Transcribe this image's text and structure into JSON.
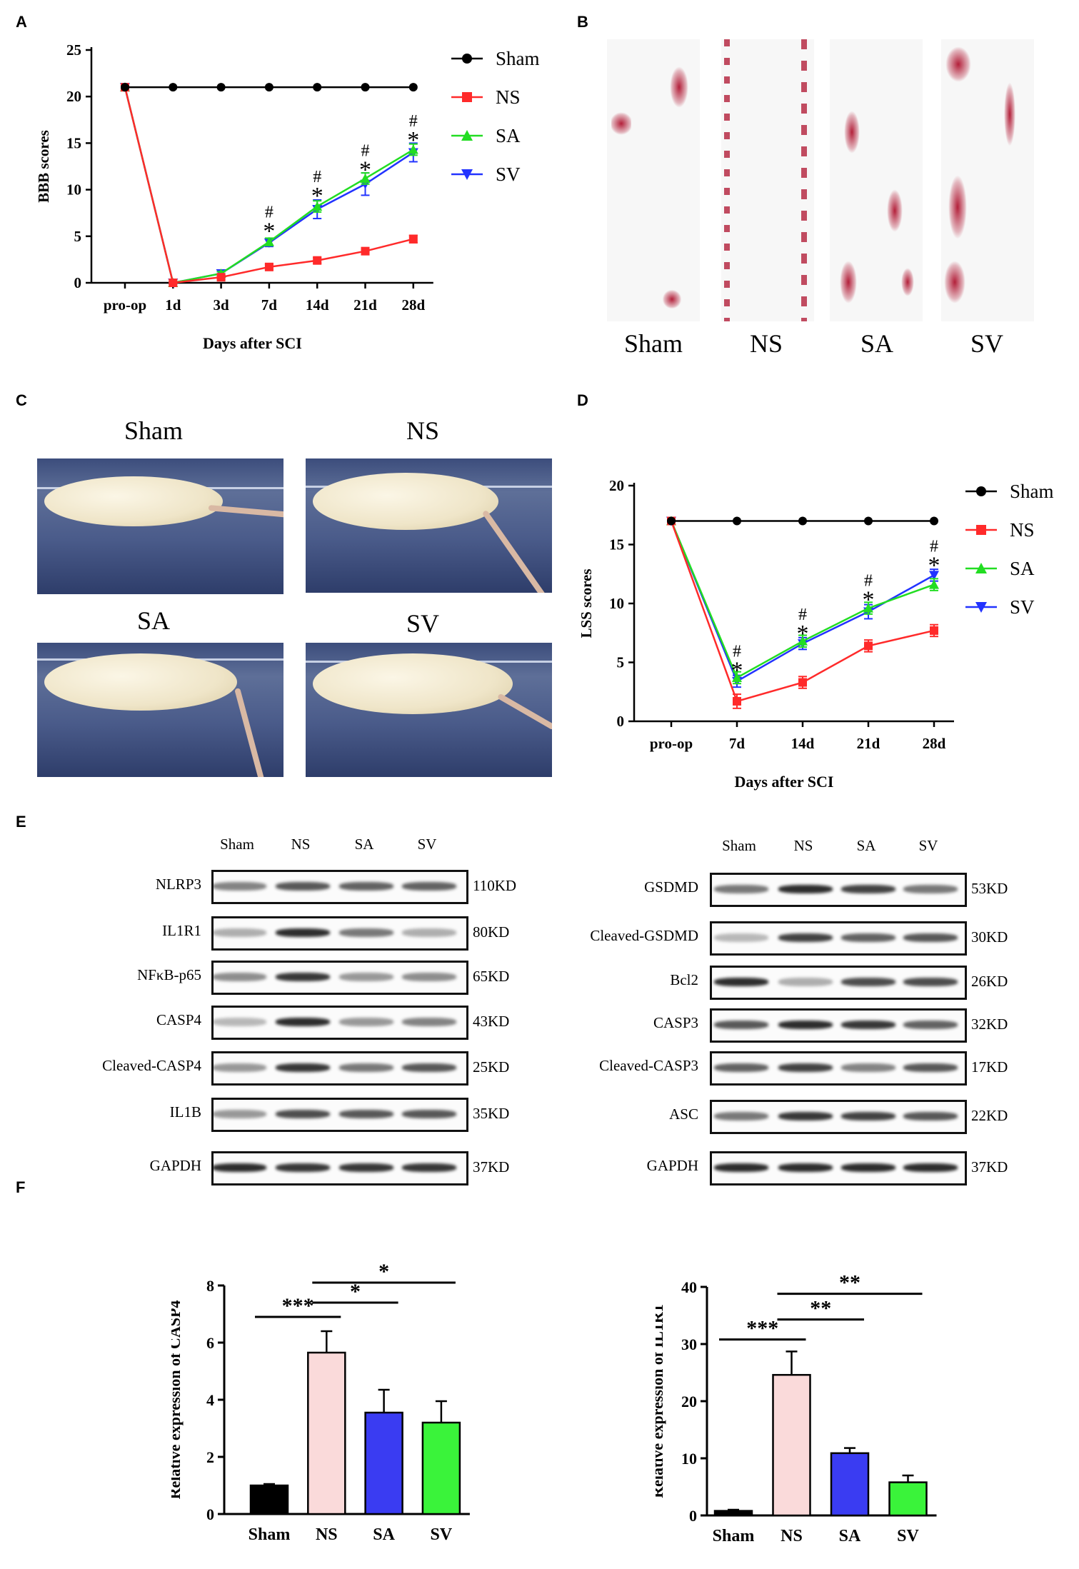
{
  "panels": {
    "A": "A",
    "B": "B",
    "C": "C",
    "D": "D",
    "E": "E",
    "F": "F"
  },
  "colors": {
    "sham": "#000000",
    "ns": "#ff2a2a",
    "sa": "#22dd22",
    "sv": "#2233ff",
    "bar_sham": "#000000",
    "bar_ns": "#fadada",
    "bar_sa": "#3a3cf2",
    "bar_sv": "#3af33a"
  },
  "panelB": {
    "labels": [
      "Sham",
      "NS",
      "SA",
      "SV"
    ]
  },
  "panelC": {
    "labels": [
      "Sham",
      "NS",
      "SA",
      "SV"
    ]
  },
  "panelE": {
    "left": {
      "lanes": [
        "Sham",
        "NS",
        "SA",
        "SV"
      ],
      "rows": [
        {
          "name": "NLRP3",
          "kd": "110KD",
          "intensity": [
            0.55,
            0.75,
            0.7,
            0.7
          ]
        },
        {
          "name": "IL1R1",
          "kd": "80KD",
          "intensity": [
            0.35,
            0.95,
            0.6,
            0.35
          ]
        },
        {
          "name": "NFκB-p65",
          "kd": "65KD",
          "intensity": [
            0.5,
            0.9,
            0.45,
            0.5
          ]
        },
        {
          "name": "CASP4",
          "kd": "43KD",
          "intensity": [
            0.3,
            0.95,
            0.45,
            0.55
          ]
        },
        {
          "name": "Cleaved-CASP4",
          "kd": "25KD",
          "intensity": [
            0.45,
            0.9,
            0.6,
            0.75
          ]
        },
        {
          "name": "IL1B",
          "kd": "35KD",
          "intensity": [
            0.45,
            0.8,
            0.75,
            0.75
          ]
        },
        {
          "name": "GAPDH",
          "kd": "37KD",
          "intensity": [
            0.95,
            0.9,
            0.9,
            0.9
          ]
        }
      ]
    },
    "right": {
      "lanes": [
        "Sham",
        "NS",
        "SA",
        "SV"
      ],
      "rows": [
        {
          "name": "GSDMD",
          "kd": "53KD",
          "intensity": [
            0.6,
            0.95,
            0.85,
            0.6
          ]
        },
        {
          "name": "Cleaved-GSDMD",
          "kd": "30KD",
          "intensity": [
            0.3,
            0.85,
            0.7,
            0.75
          ]
        },
        {
          "name": "Bcl2",
          "kd": "26KD",
          "intensity": [
            0.95,
            0.35,
            0.8,
            0.8
          ]
        },
        {
          "name": "CASP3",
          "kd": "32KD",
          "intensity": [
            0.75,
            0.95,
            0.9,
            0.7
          ]
        },
        {
          "name": "Cleaved-CASP3",
          "kd": "17KD",
          "intensity": [
            0.7,
            0.85,
            0.55,
            0.75
          ]
        },
        {
          "name": "ASC",
          "kd": "22KD",
          "intensity": [
            0.6,
            0.9,
            0.85,
            0.75
          ]
        },
        {
          "name": "GAPDH",
          "kd": "37KD",
          "intensity": [
            0.95,
            0.95,
            0.95,
            0.95
          ]
        }
      ]
    }
  },
  "chart_data": [
    {
      "id": "A",
      "type": "line",
      "xlabel": "Days after SCI",
      "ylabel": "BBB scores",
      "categories": [
        "pro-op",
        "1d",
        "3d",
        "7d",
        "14d",
        "21d",
        "28d"
      ],
      "yticks": [
        "0",
        "5",
        "10",
        "15",
        "20",
        "25"
      ],
      "ylim": [
        0,
        25
      ],
      "series": [
        {
          "name": "Sham",
          "marker": "circle",
          "values": [
            21,
            21,
            21,
            21,
            21,
            21,
            21
          ],
          "err": [
            0,
            0,
            0,
            0,
            0,
            0,
            0
          ]
        },
        {
          "name": "NS",
          "marker": "square",
          "values": [
            21,
            0,
            0.6,
            1.7,
            2.4,
            3.4,
            4.7
          ],
          "err": [
            0,
            0.1,
            0.2,
            0.3,
            0.3,
            0.3,
            0.4
          ]
        },
        {
          "name": "SA",
          "marker": "triangle-up",
          "values": [
            21,
            0,
            1.0,
            4.4,
            8.2,
            11.2,
            14.3
          ],
          "err": [
            0,
            0.1,
            0.2,
            0.4,
            0.6,
            0.6,
            0.6
          ]
        },
        {
          "name": "SV",
          "marker": "triangle-down",
          "values": [
            21,
            0,
            1.0,
            4.3,
            7.9,
            10.6,
            14.0
          ],
          "err": [
            0,
            0.1,
            0.2,
            0.4,
            1.0,
            1.2,
            1.0
          ]
        }
      ],
      "annotations": [
        {
          "x": "7d",
          "lines": [
            "#",
            "*"
          ],
          "y": 7.0
        },
        {
          "x": "14d",
          "lines": [
            "#",
            "*"
          ],
          "y": 10.8
        },
        {
          "x": "21d",
          "lines": [
            "#",
            "*"
          ],
          "y": 13.6
        },
        {
          "x": "28d",
          "lines": [
            "#",
            "*"
          ],
          "y": 16.8
        }
      ]
    },
    {
      "id": "D",
      "type": "line",
      "xlabel": "Days after SCI",
      "ylabel": "LSS scores",
      "categories": [
        "pro-op",
        "7d",
        "14d",
        "21d",
        "28d"
      ],
      "yticks": [
        "0",
        "5",
        "10",
        "15",
        "20"
      ],
      "ylim": [
        0,
        20
      ],
      "series": [
        {
          "name": "Sham",
          "marker": "circle",
          "values": [
            17,
            17,
            17,
            17,
            17
          ],
          "err": [
            0,
            0,
            0,
            0,
            0
          ]
        },
        {
          "name": "NS",
          "marker": "square",
          "values": [
            17,
            1.7,
            3.3,
            6.4,
            7.7
          ],
          "err": [
            0,
            0.6,
            0.5,
            0.5,
            0.5
          ]
        },
        {
          "name": "SA",
          "marker": "triangle-up",
          "values": [
            17,
            3.7,
            6.8,
            9.6,
            11.6
          ],
          "err": [
            0,
            0.5,
            0.5,
            0.5,
            0.5
          ]
        },
        {
          "name": "SV",
          "marker": "triangle-down",
          "values": [
            17,
            3.4,
            6.6,
            9.3,
            12.4
          ],
          "err": [
            0,
            0.5,
            0.5,
            0.6,
            0.5
          ]
        }
      ],
      "annotations": [
        {
          "x": "7d",
          "lines": [
            "#",
            "*"
          ],
          "y": 5.5
        },
        {
          "x": "14d",
          "lines": [
            "#",
            "*"
          ],
          "y": 8.6
        },
        {
          "x": "21d",
          "lines": [
            "#",
            "*"
          ],
          "y": 11.5
        },
        {
          "x": "28d",
          "lines": [
            "#",
            "*"
          ],
          "y": 14.4
        }
      ]
    },
    {
      "id": "F-left",
      "type": "bar",
      "ylabel": "Relative expression of CASP4",
      "categories": [
        "Sham",
        "NS",
        "SA",
        "SV"
      ],
      "values": [
        1.0,
        5.65,
        3.55,
        3.2
      ],
      "err": [
        0.05,
        0.75,
        0.8,
        0.75
      ],
      "yticks": [
        "0",
        "2",
        "4",
        "6",
        "8"
      ],
      "ylim": [
        0,
        8
      ],
      "significance": [
        {
          "from": 0,
          "to": 1,
          "label": "***",
          "y": 6.9
        },
        {
          "from": 1,
          "to": 2,
          "label": "*",
          "y": 7.4
        },
        {
          "from": 1,
          "to": 3,
          "label": "*",
          "y": 8.1
        }
      ]
    },
    {
      "id": "F-right",
      "type": "bar",
      "ylabel": "Relative expression of IL1R1",
      "categories": [
        "Sham",
        "NS",
        "SA",
        "SV"
      ],
      "values": [
        0.8,
        24.6,
        10.9,
        5.8
      ],
      "err": [
        0.2,
        4.1,
        0.9,
        1.2
      ],
      "yticks": [
        "0",
        "10",
        "20",
        "30",
        "40"
      ],
      "ylim": [
        0,
        40
      ],
      "significance": [
        {
          "from": 0,
          "to": 1,
          "label": "***",
          "y": 30.8
        },
        {
          "from": 1,
          "to": 2,
          "label": "**",
          "y": 34.3
        },
        {
          "from": 1,
          "to": 3,
          "label": "**",
          "y": 38.8
        }
      ]
    }
  ]
}
